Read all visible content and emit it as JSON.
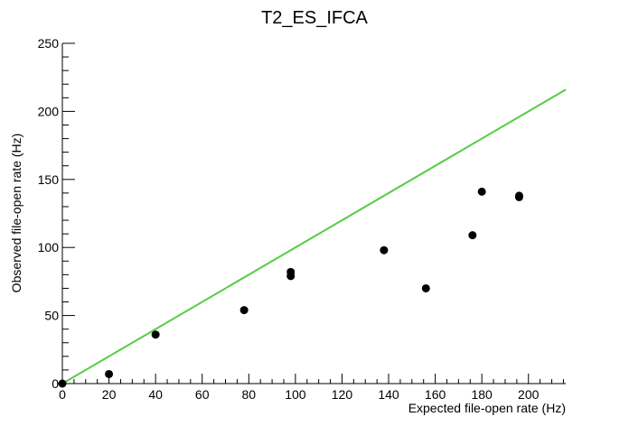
{
  "chart_data": {
    "type": "scatter",
    "title": "T2_ES_IFCA",
    "xlabel": "Expected file-open rate (Hz)",
    "ylabel": "Observed file-open rate (Hz)",
    "xlim": [
      0,
      216
    ],
    "ylim": [
      0,
      250
    ],
    "xticks": [
      0,
      20,
      40,
      60,
      80,
      100,
      120,
      140,
      160,
      180,
      200
    ],
    "yticks": [
      0,
      50,
      100,
      150,
      200,
      250
    ],
    "grid": false,
    "legend": "none",
    "series": [
      {
        "marker_color": "#000000",
        "points": [
          {
            "x": 0,
            "y": 0
          },
          {
            "x": 20,
            "y": 7
          },
          {
            "x": 40,
            "y": 36
          },
          {
            "x": 78,
            "y": 54
          },
          {
            "x": 98,
            "y": 79
          },
          {
            "x": 98,
            "y": 82
          },
          {
            "x": 138,
            "y": 98
          },
          {
            "x": 156,
            "y": 70
          },
          {
            "x": 176,
            "y": 109
          },
          {
            "x": 180,
            "y": 141
          },
          {
            "x": 196,
            "y": 137
          },
          {
            "x": 196,
            "y": 138
          }
        ]
      }
    ],
    "reference_line": {
      "type": "y=x",
      "x": [
        0,
        216
      ],
      "y": [
        0,
        216
      ],
      "color": "#55cc44"
    }
  }
}
